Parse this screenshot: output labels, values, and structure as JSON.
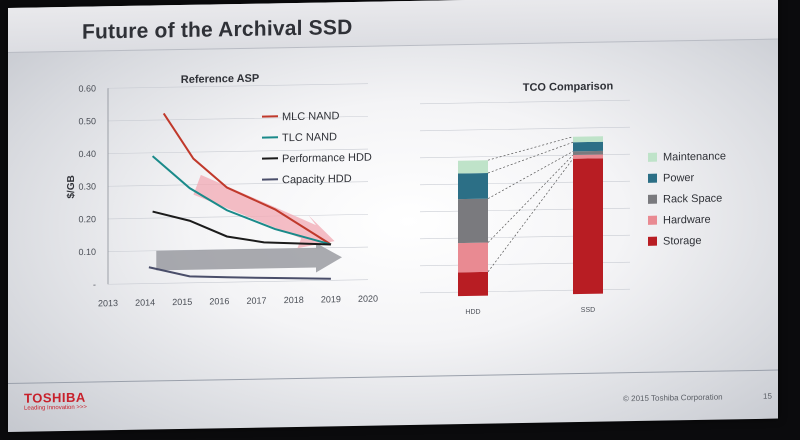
{
  "slide": {
    "title": "Future of the Archival SSD",
    "logo": "TOSHIBA",
    "tagline": "Leading Innovation >>>",
    "copyright": "© 2015 Toshiba Corporation",
    "page": "15"
  },
  "chart_data": [
    {
      "type": "line",
      "title": "Reference ASP",
      "xlabel": "",
      "ylabel": "$/GB",
      "x": [
        2013,
        2014,
        2015,
        2016,
        2017,
        2018,
        2019,
        2020
      ],
      "ylim": [
        0,
        0.6
      ],
      "yticks": [
        "0.60",
        "0.50",
        "0.40",
        "0.30",
        "0.20",
        "0.10",
        "-"
      ],
      "series": [
        {
          "name": "MLC NAND",
          "color": "#c0392b",
          "points": [
            [
              2014.5,
              0.52
            ],
            [
              2015.3,
              0.38
            ],
            [
              2016.2,
              0.29
            ],
            [
              2017.5,
              0.22
            ],
            [
              2019,
              0.11
            ]
          ]
        },
        {
          "name": "TLC NAND",
          "color": "#1a8a8a",
          "points": [
            [
              2014.2,
              0.39
            ],
            [
              2015.2,
              0.29
            ],
            [
              2016.2,
              0.22
            ],
            [
              2017.5,
              0.16
            ],
            [
              2019,
              0.11
            ]
          ]
        },
        {
          "name": "Performance HDD",
          "color": "#1b1b1b",
          "points": [
            [
              2014.2,
              0.22
            ],
            [
              2015.2,
              0.19
            ],
            [
              2016.2,
              0.14
            ],
            [
              2017.2,
              0.12
            ],
            [
              2019,
              0.11
            ]
          ]
        },
        {
          "name": "Capacity HDD",
          "color": "#4a4e6a",
          "points": [
            [
              2014.1,
              0.05
            ],
            [
              2015.2,
              0.02
            ],
            [
              2016.2,
              0.015
            ],
            [
              2017.5,
              0.01
            ],
            [
              2019,
              0.005
            ]
          ]
        }
      ]
    },
    {
      "type": "bar",
      "title": "TCO Comparison",
      "categories": [
        "HDD",
        "SSD"
      ],
      "stacked": true,
      "series": [
        {
          "name": "Storage",
          "color": "#b81d23",
          "values": [
            13,
            74
          ]
        },
        {
          "name": "Hardware",
          "color": "#e98a92",
          "values": [
            16,
            2
          ]
        },
        {
          "name": "Rack Space",
          "color": "#7a7a7e",
          "values": [
            24,
            2
          ]
        },
        {
          "name": "Power",
          "color": "#2c6f86",
          "values": [
            14,
            5
          ]
        },
        {
          "name": "Maintenance",
          "color": "#bfe3c9",
          "values": [
            7,
            3
          ]
        }
      ],
      "legend": [
        "Maintenance",
        "Power",
        "Rack Space",
        "Hardware",
        "Storage"
      ]
    }
  ]
}
